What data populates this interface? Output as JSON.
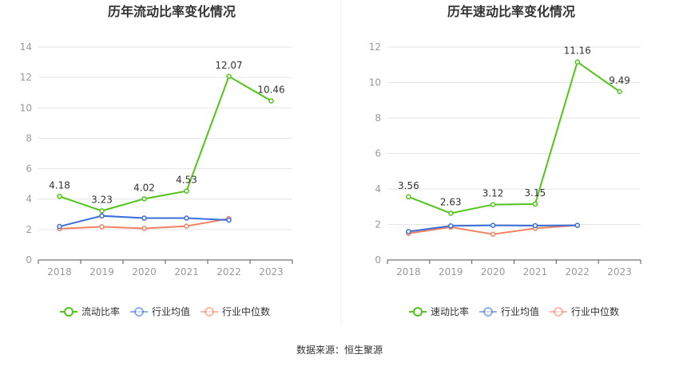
{
  "source": "数据来源：恒生聚源",
  "colors": {
    "main": "#52c41a",
    "avg": "#3a6fd8",
    "median": "#f08262",
    "grid": "#e6e6e6",
    "axis": "#555555"
  },
  "chart_data": [
    {
      "type": "line",
      "title": "历年流动比率变化情况",
      "categories": [
        "2018",
        "2019",
        "2020",
        "2021",
        "2022",
        "2023"
      ],
      "ylim": [
        0,
        14
      ],
      "yticks": [
        0,
        2,
        4,
        6,
        8,
        10,
        12,
        14
      ],
      "series": [
        {
          "name": "流动比率",
          "values": [
            4.18,
            3.23,
            4.02,
            4.53,
            12.07,
            10.46
          ],
          "labels": [
            "4.18",
            "3.23",
            "4.02",
            "4.53",
            "12.07",
            "10.46"
          ],
          "color": "#52c41a"
        },
        {
          "name": "行业均值",
          "values": [
            2.2,
            2.9,
            2.75,
            2.75,
            2.62,
            null
          ],
          "color": "#3a6fd8"
        },
        {
          "name": "行业中位数",
          "values": [
            2.05,
            2.18,
            2.07,
            2.22,
            2.72,
            null
          ],
          "color": "#f08262"
        }
      ],
      "legend": "bottom"
    },
    {
      "type": "line",
      "title": "历年速动比率变化情况",
      "categories": [
        "2018",
        "2019",
        "2020",
        "2021",
        "2022",
        "2023"
      ],
      "ylim": [
        0,
        12
      ],
      "yticks": [
        0,
        2,
        4,
        6,
        8,
        10,
        12
      ],
      "series": [
        {
          "name": "速动比率",
          "values": [
            3.56,
            2.63,
            3.12,
            3.15,
            11.16,
            9.49
          ],
          "labels": [
            "3.56",
            "2.63",
            "3.12",
            "3.15",
            "11.16",
            "9.49"
          ],
          "color": "#52c41a"
        },
        {
          "name": "行业均值",
          "values": [
            1.6,
            1.92,
            1.95,
            1.93,
            1.95,
            null
          ],
          "color": "#3a6fd8"
        },
        {
          "name": "行业中位数",
          "values": [
            1.5,
            1.85,
            1.45,
            1.78,
            1.95,
            null
          ],
          "color": "#f08262"
        }
      ],
      "legend": "bottom"
    }
  ]
}
